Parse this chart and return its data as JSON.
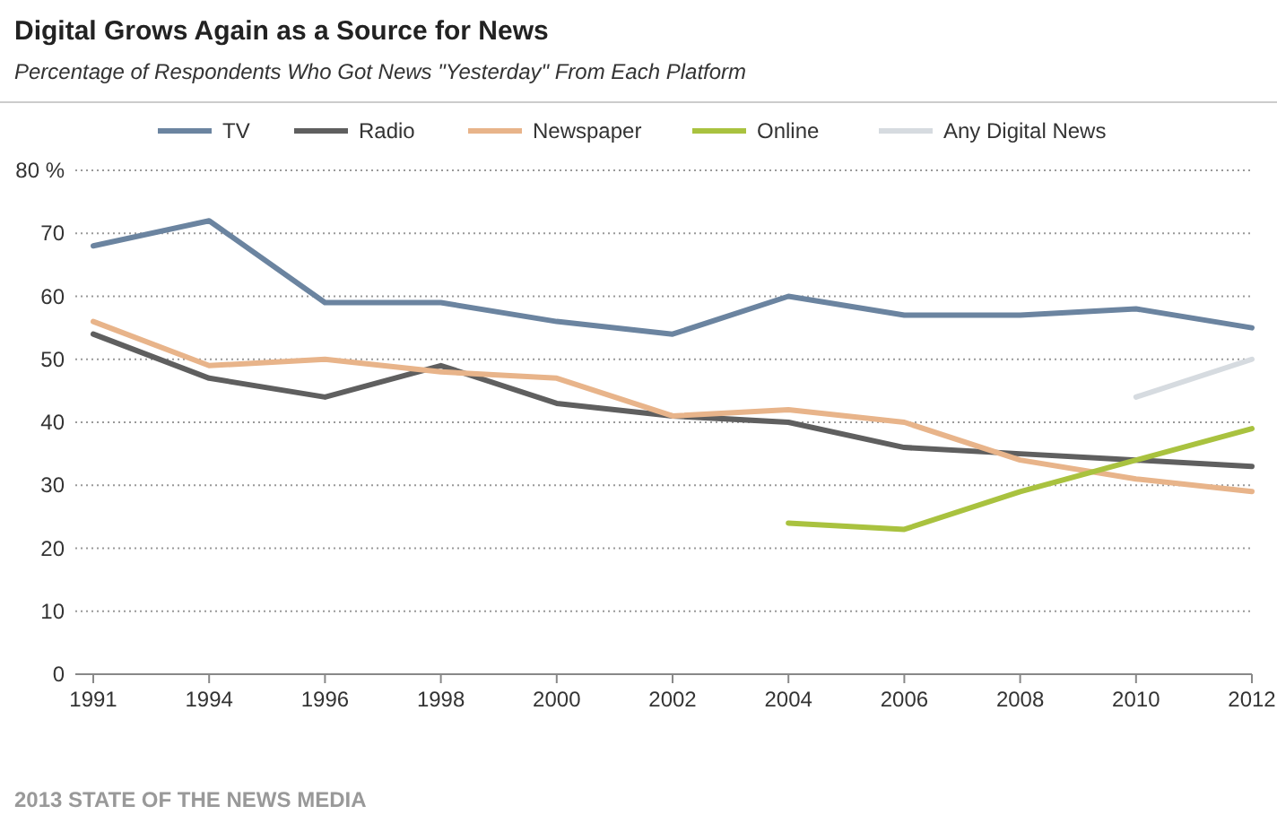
{
  "chart_data": {
    "type": "line",
    "title": "Digital Grows Again as a Source for News",
    "subtitle": "Percentage of Respondents Who Got News \"Yesterday\" From Each Platform",
    "categories": [
      "1991",
      "1994",
      "1996",
      "1998",
      "2000",
      "2002",
      "2004",
      "2006",
      "2008",
      "2010",
      "2012"
    ],
    "series": [
      {
        "name": "TV",
        "color": "#6b84a0",
        "values": [
          68,
          72,
          59,
          59,
          56,
          54,
          60,
          57,
          57,
          58,
          55
        ]
      },
      {
        "name": "Radio",
        "color": "#5f5f5f",
        "values": [
          54,
          47,
          44,
          49,
          43,
          41,
          40,
          36,
          35,
          34,
          33
        ]
      },
      {
        "name": "Newspaper",
        "color": "#e8b48a",
        "values": [
          56,
          49,
          50,
          48,
          47,
          41,
          42,
          40,
          34,
          31,
          29
        ]
      },
      {
        "name": "Online",
        "color": "#a9c23f",
        "values": [
          null,
          null,
          null,
          null,
          null,
          null,
          24,
          23,
          29,
          34,
          39
        ]
      },
      {
        "name": "Any Digital News",
        "color": "#d6dbe0",
        "values": [
          null,
          null,
          null,
          null,
          null,
          null,
          null,
          null,
          null,
          44,
          50
        ]
      }
    ],
    "ylim": [
      0,
      80
    ],
    "yticks": [
      0,
      10,
      20,
      30,
      40,
      50,
      60,
      70,
      {
        "value": 80,
        "label": "80 %"
      }
    ],
    "grid": "y",
    "legend": "top",
    "marker": "none",
    "line_style": "solid",
    "annotations": [
      "2013 STATE OF THE NEWS MEDIA"
    ]
  }
}
